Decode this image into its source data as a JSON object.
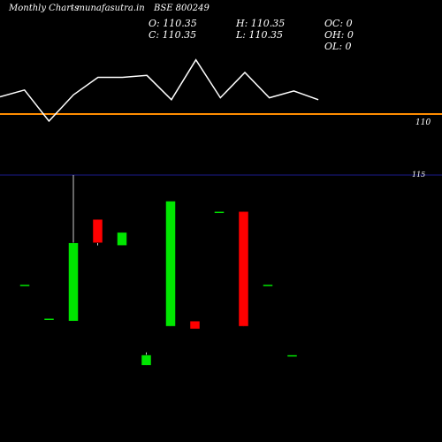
{
  "header": {
    "left_title": "Monthly Charts",
    "site": "- munafasutra.in",
    "symbol": "BSE 800249"
  },
  "ohlc": {
    "open": "O: 110.35",
    "high": "H: 110.35",
    "close": "C: 110.35",
    "low": "L: 110.35",
    "oc": "OC: 0",
    "oh": "OH: 0",
    "ol": "OL: 0"
  },
  "chart_data": {
    "type": "candlestick",
    "upper_panel": {
      "reference_level_label": "110",
      "line_values": [
        0.55,
        0.62,
        0.3,
        0.57,
        0.75,
        0.75,
        0.77,
        0.52,
        0.93,
        0.54,
        0.8,
        0.54,
        0.61,
        0.52
      ],
      "colors": {
        "line": "#ffffff",
        "reference": "#ff8c00"
      }
    },
    "lower_panel": {
      "reference_level_label": "115",
      "y_range": [
        0,
        1
      ],
      "candles": [
        {
          "open": 0.58,
          "close": 0.58,
          "high": 0.58,
          "low": 0.58,
          "color": "#00e600"
        },
        {
          "open": 0.45,
          "close": 0.45,
          "high": 0.45,
          "low": 0.45,
          "color": "#00e600"
        },
        {
          "open": 0.44,
          "close": 0.74,
          "high": 1.0,
          "low": 0.44,
          "color": "#00e600"
        },
        {
          "open": 0.83,
          "close": 0.74,
          "high": 0.83,
          "low": 0.73,
          "color": "#ff0000"
        },
        {
          "open": 0.73,
          "close": 0.78,
          "high": 0.78,
          "low": 0.73,
          "color": "#00e600"
        },
        {
          "open": 0.27,
          "close": 0.31,
          "high": 0.32,
          "low": 0.27,
          "color": "#00e600"
        },
        {
          "open": 0.42,
          "close": 0.9,
          "high": 0.9,
          "low": 0.42,
          "color": "#00e600"
        },
        {
          "open": 0.44,
          "close": 0.41,
          "high": 0.44,
          "low": 0.41,
          "color": "#ff0000"
        },
        {
          "open": 0.86,
          "close": 0.86,
          "high": 0.86,
          "low": 0.86,
          "color": "#00e600"
        },
        {
          "open": 0.86,
          "close": 0.42,
          "high": 0.86,
          "low": 0.42,
          "color": "#ff0000"
        },
        {
          "open": 0.58,
          "close": 0.58,
          "high": 0.58,
          "low": 0.58,
          "color": "#00e600"
        },
        {
          "open": 0.31,
          "close": 0.31,
          "high": 0.31,
          "low": 0.31,
          "color": "#00e600"
        }
      ],
      "colors": {
        "reference": "#1a1a8c"
      }
    }
  }
}
